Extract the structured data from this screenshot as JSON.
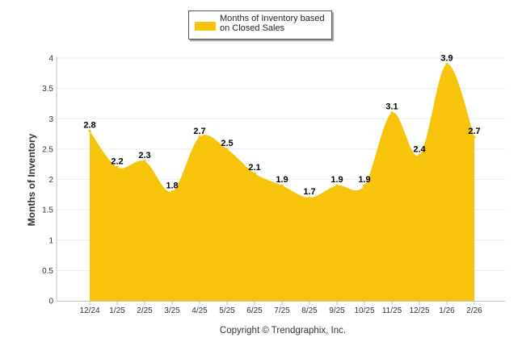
{
  "chart_data": {
    "type": "area",
    "categories": [
      "12/24",
      "1/25",
      "2/25",
      "3/25",
      "4/25",
      "5/25",
      "6/25",
      "7/25",
      "8/25",
      "9/25",
      "10/25",
      "11/25",
      "12/25",
      "1/26",
      "2/26"
    ],
    "series": [
      {
        "name": "Months of Inventory based on Closed Sales",
        "values": [
          2.8,
          2.2,
          2.3,
          1.8,
          2.7,
          2.5,
          2.1,
          1.9,
          1.7,
          1.9,
          1.9,
          3.1,
          2.4,
          3.9,
          2.7
        ],
        "labels": [
          "2.8",
          "2.2",
          "2.3",
          "1.8",
          "2.7",
          "2.5",
          "2.1",
          "1.9",
          "1.7",
          "1.9",
          "1.9",
          "3.1",
          "2.4",
          "3.9",
          "2.7"
        ],
        "color": "#f7c30b"
      }
    ],
    "ylabel": "Months of Inventory",
    "xlabel": "",
    "ylim": [
      0,
      4
    ],
    "yticks": [
      0,
      0.5,
      1,
      1.5,
      2,
      2.5,
      3,
      3.5,
      4
    ],
    "ytick_labels": [
      "0",
      "0.5",
      "1",
      "1.5",
      "2",
      "2.5",
      "3",
      "3.5",
      "4"
    ],
    "grid": true,
    "legend": "top-center",
    "grid_color": "#eeeeee",
    "axis_color": "#c0c0c0"
  },
  "legend": {
    "line1": "Months of Inventory based",
    "line2": "on Closed Sales"
  },
  "credit": "Copyright © Trendgraphix, Inc."
}
